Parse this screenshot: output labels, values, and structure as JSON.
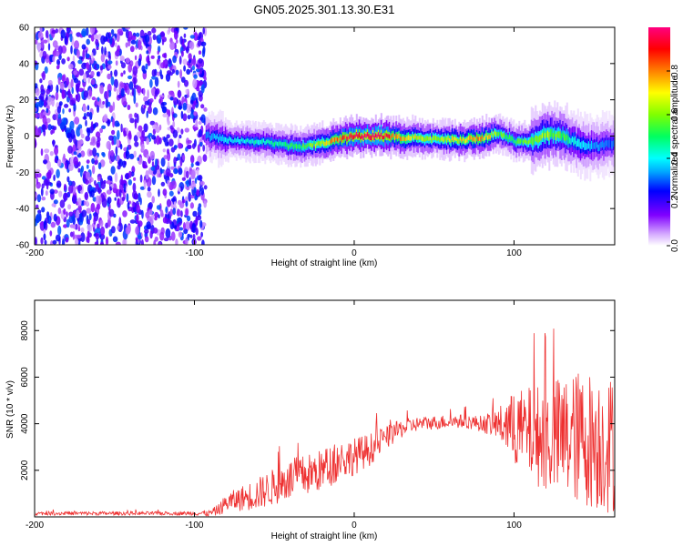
{
  "title": "GN05.2025.301.13.30.E31",
  "chart_data": [
    {
      "type": "heatmap",
      "name": "spectrogram",
      "xlabel": "Height of straight line (km)",
      "ylabel": "Frequency (Hz)",
      "xlim": [
        -200,
        163
      ],
      "ylim": [
        -60,
        60
      ],
      "xticks": [
        -200,
        -100,
        0,
        100
      ],
      "yticks": [
        -60,
        -40,
        -20,
        0,
        20,
        40,
        60
      ],
      "noise_region": {
        "x_start": -200,
        "x_end": -93,
        "freq_range": [
          -60,
          60
        ],
        "amplitude": [
          0.05,
          0.3
        ]
      },
      "signal_band": {
        "x": [
          -93,
          -80,
          -60,
          -45,
          -35,
          -20,
          -10,
          0,
          10,
          20,
          30,
          40,
          50,
          60,
          70,
          80,
          90,
          100,
          110,
          120,
          130,
          140,
          150,
          163
        ],
        "center_freq": [
          0,
          -2,
          -3,
          -5,
          -6,
          -4,
          -2,
          0,
          0,
          0,
          -1,
          -1,
          -2,
          -2,
          -2,
          -1,
          2,
          -3,
          -3,
          1,
          0,
          -4,
          -6,
          -4
        ],
        "peak_amplitude": [
          0.35,
          0.4,
          0.45,
          0.5,
          0.55,
          0.7,
          0.85,
          1.0,
          1.0,
          0.95,
          0.75,
          0.7,
          0.65,
          0.7,
          0.75,
          0.85,
          0.6,
          0.55,
          0.6,
          0.65,
          0.55,
          0.4,
          0.35,
          0.3
        ]
      },
      "colorbar": {
        "label": "Normalized spectral amplitude",
        "range": [
          0.0,
          1.0
        ],
        "ticks": [
          "0.0",
          "0.2",
          "0.4",
          "0.6",
          "0.8"
        ],
        "colors": [
          "#ffffff",
          "#d8b0ff",
          "#8000ff",
          "#0000ff",
          "#00aaff",
          "#00ffff",
          "#00ff60",
          "#80ff00",
          "#ffff00",
          "#ff8000",
          "#ff0000",
          "#ff0080"
        ]
      }
    },
    {
      "type": "line",
      "name": "snr",
      "xlabel": "Height of straight line (km)",
      "ylabel": "SNR (10 * v/v)",
      "xlim": [
        -200,
        163
      ],
      "ylim": [
        0,
        9300
      ],
      "xticks": [
        -200,
        -100,
        0,
        100
      ],
      "yticks": [
        2000,
        4000,
        6000,
        8000
      ],
      "color": "#ee3030",
      "series": [
        {
          "name": "SNR",
          "x": [
            -200,
            -150,
            -100,
            -90,
            -85,
            -80,
            -70,
            -60,
            -50,
            -40,
            -30,
            -20,
            -10,
            0,
            10,
            20,
            30,
            40,
            50,
            60,
            70,
            80,
            90,
            100,
            110,
            120,
            130,
            140,
            150,
            160,
            163
          ],
          "center": [
            150,
            150,
            150,
            160,
            300,
            600,
            800,
            1000,
            1300,
            1600,
            1800,
            2000,
            2400,
            2600,
            2900,
            3400,
            3800,
            4000,
            4050,
            4100,
            4100,
            4000,
            4000,
            3800,
            3600,
            3400,
            3400,
            3400,
            3300,
            3100,
            3100
          ],
          "spread": [
            80,
            80,
            80,
            150,
            250,
            400,
            550,
            700,
            800,
            900,
            900,
            900,
            900,
            800,
            700,
            500,
            400,
            300,
            300,
            300,
            300,
            350,
            700,
            1600,
            2000,
            2400,
            2700,
            2900,
            3000,
            3000,
            3000
          ]
        }
      ]
    }
  ]
}
